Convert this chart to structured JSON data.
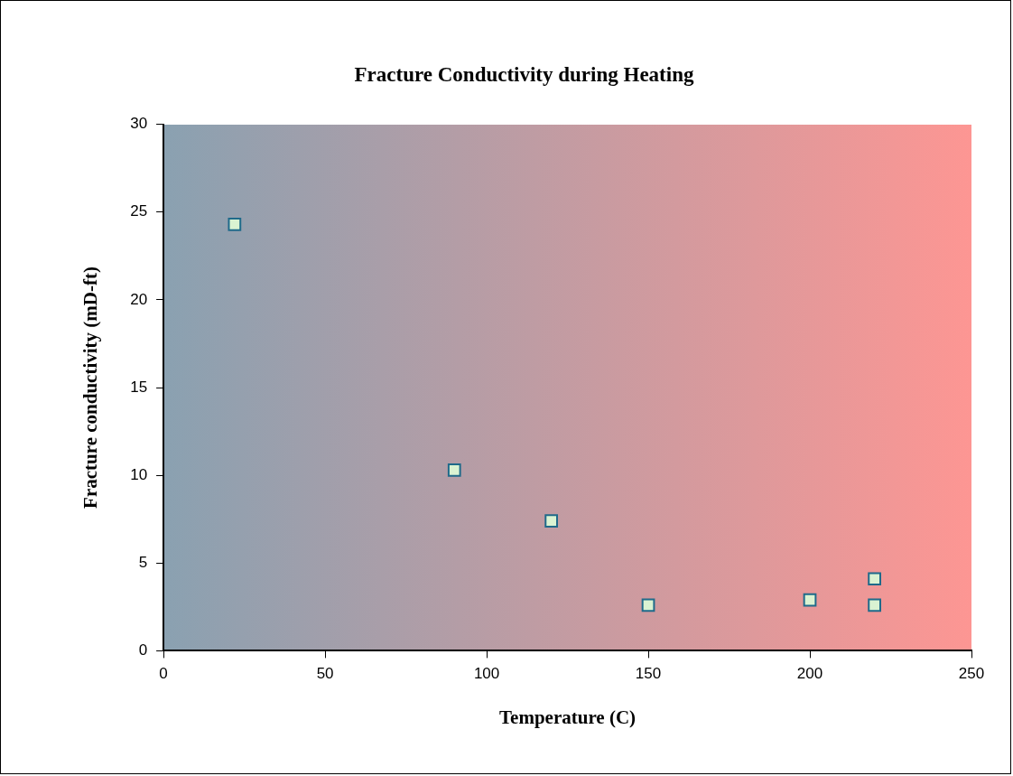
{
  "chart_data": {
    "type": "scatter",
    "title": "Fracture Conductivity during Heating",
    "xlabel": "Temperature (C)",
    "ylabel": "Fracture conductivity (mD-ft)",
    "series": [
      {
        "color": "#1f6a8a",
        "x": [
          22,
          90,
          120,
          150,
          200,
          220,
          220
        ],
        "values": [
          24.3,
          10.3,
          7.4,
          2.6,
          2.9,
          4.1,
          2.6
        ]
      }
    ],
    "xlim": [
      0,
      250
    ],
    "xticks": [
      0,
      50,
      100,
      150,
      200,
      250
    ],
    "ylim": [
      0,
      30
    ],
    "yticks": [
      0,
      5,
      10,
      15,
      20,
      25,
      30
    ],
    "marker": "square",
    "grid": false,
    "legend": false
  }
}
